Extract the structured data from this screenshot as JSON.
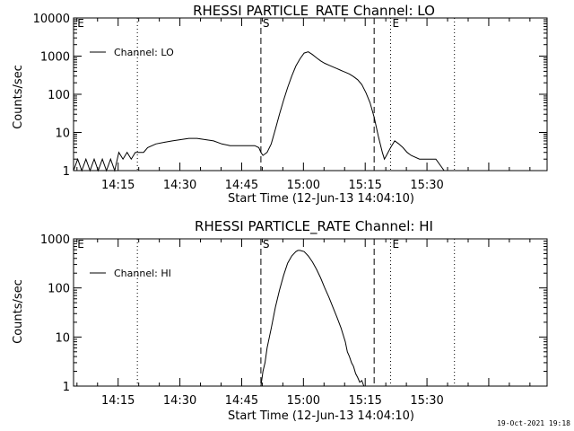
{
  "chart_data": [
    {
      "type": "line",
      "title": "RHESSI PARTICLE_RATE Channel: LO",
      "xlabel": "Start Time (12-Jun-13 14:04:10)",
      "ylabel": "Counts/sec",
      "yscale": "log",
      "ylim": [
        1,
        10000
      ],
      "yticks": [
        "1",
        "10",
        "100",
        "1000",
        "10000"
      ],
      "xlim_minutes": [
        0,
        115
      ],
      "xticks": [
        {
          "label": "14:15",
          "minute": 10.83
        },
        {
          "label": "14:30",
          "minute": 25.83
        },
        {
          "label": "14:45",
          "minute": 40.83
        },
        {
          "label": "15:00",
          "minute": 55.83
        },
        {
          "label": "15:15",
          "minute": 70.83
        },
        {
          "label": "15:30",
          "minute": 85.83
        }
      ],
      "legend": "top-left",
      "series": [
        {
          "name": "Channel: LO",
          "x": [
            0,
            1,
            2,
            3,
            4,
            5,
            6,
            7,
            8,
            9,
            10,
            11,
            12,
            13,
            14,
            15,
            16,
            17,
            18,
            20,
            22,
            24,
            26,
            28,
            30,
            32,
            34,
            36,
            38,
            40,
            42,
            44,
            45,
            45.5,
            46,
            47,
            48,
            49,
            50,
            51,
            52,
            53,
            54,
            55,
            56,
            57,
            58,
            59,
            60,
            61,
            62,
            63,
            64,
            65,
            66,
            67,
            68,
            69,
            70,
            71,
            72,
            73,
            74,
            75,
            75.5,
            76,
            77,
            78,
            79,
            80,
            81,
            82,
            84,
            86,
            88,
            90,
            92,
            94,
            96,
            98,
            100,
            102,
            104
          ],
          "y": [
            1,
            2,
            1,
            2,
            1,
            2,
            1,
            2,
            1,
            2,
            1,
            3,
            2,
            3,
            2,
            3,
            3,
            3,
            4,
            5,
            5.5,
            6,
            6.5,
            7,
            7,
            6.5,
            6,
            5,
            4.5,
            4.5,
            4.5,
            4.5,
            4,
            3,
            2.5,
            3,
            5,
            12,
            30,
            70,
            150,
            300,
            550,
            850,
            1200,
            1300,
            1100,
            900,
            750,
            650,
            580,
            520,
            470,
            420,
            380,
            340,
            290,
            240,
            180,
            110,
            60,
            25,
            8,
            3,
            2,
            2.5,
            4,
            6,
            5,
            4,
            3,
            2.5,
            2,
            2,
            2,
            1,
            1,
            1,
            1,
            1,
            1,
            1,
            1
          ]
        }
      ],
      "markers": [
        {
          "label": "E",
          "minute": 0.5,
          "style": "text"
        },
        {
          "label": "",
          "minute": 15.5,
          "style": "dotted"
        },
        {
          "label": "S",
          "minute": 45.5,
          "style": "dashed"
        },
        {
          "label": "",
          "minute": 73.0,
          "style": "dashed"
        },
        {
          "label": "E",
          "minute": 77.0,
          "style": "dotted"
        },
        {
          "label": "",
          "minute": 92.5,
          "style": "dotted"
        }
      ]
    },
    {
      "type": "line",
      "title": "RHESSI PARTICLE_RATE Channel: HI",
      "xlabel": "Start Time (12-Jun-13 14:04:10)",
      "ylabel": "Counts/sec",
      "yscale": "log",
      "ylim": [
        1,
        1000
      ],
      "yticks": [
        "1",
        "10",
        "100",
        "1000"
      ],
      "xlim_minutes": [
        0,
        115
      ],
      "xticks": [
        {
          "label": "14:15",
          "minute": 10.83
        },
        {
          "label": "14:30",
          "minute": 25.83
        },
        {
          "label": "14:45",
          "minute": 40.83
        },
        {
          "label": "15:00",
          "minute": 55.83
        },
        {
          "label": "15:15",
          "minute": 70.83
        },
        {
          "label": "15:30",
          "minute": 85.83
        }
      ],
      "legend": "top-left",
      "series": [
        {
          "name": "Channel: HI",
          "x": [
            45.5,
            46,
            46.5,
            47,
            48,
            49,
            50,
            51,
            52,
            53,
            54,
            54.5,
            55,
            56,
            57,
            58,
            59,
            60,
            61,
            62,
            63,
            64,
            65,
            66,
            66.5,
            67,
            67.5,
            68,
            68.5,
            69,
            69.5,
            70,
            70.5
          ],
          "y": [
            1,
            2,
            3,
            6,
            15,
            40,
            90,
            180,
            320,
            450,
            550,
            580,
            580,
            550,
            450,
            340,
            240,
            160,
            100,
            65,
            40,
            25,
            15,
            8,
            5,
            4,
            3,
            2.5,
            1.8,
            1.5,
            1.2,
            1.3,
            1
          ]
        }
      ],
      "markers": [
        {
          "label": "E",
          "minute": 0.5,
          "style": "text"
        },
        {
          "label": "",
          "minute": 15.5,
          "style": "dotted"
        },
        {
          "label": "S",
          "minute": 45.5,
          "style": "dashed"
        },
        {
          "label": "",
          "minute": 73.0,
          "style": "dashed"
        },
        {
          "label": "E",
          "minute": 77.0,
          "style": "dotted"
        },
        {
          "label": "",
          "minute": 92.5,
          "style": "dotted"
        }
      ]
    }
  ],
  "footer": {
    "timestamp": "19-Oct-2021 19:18"
  }
}
